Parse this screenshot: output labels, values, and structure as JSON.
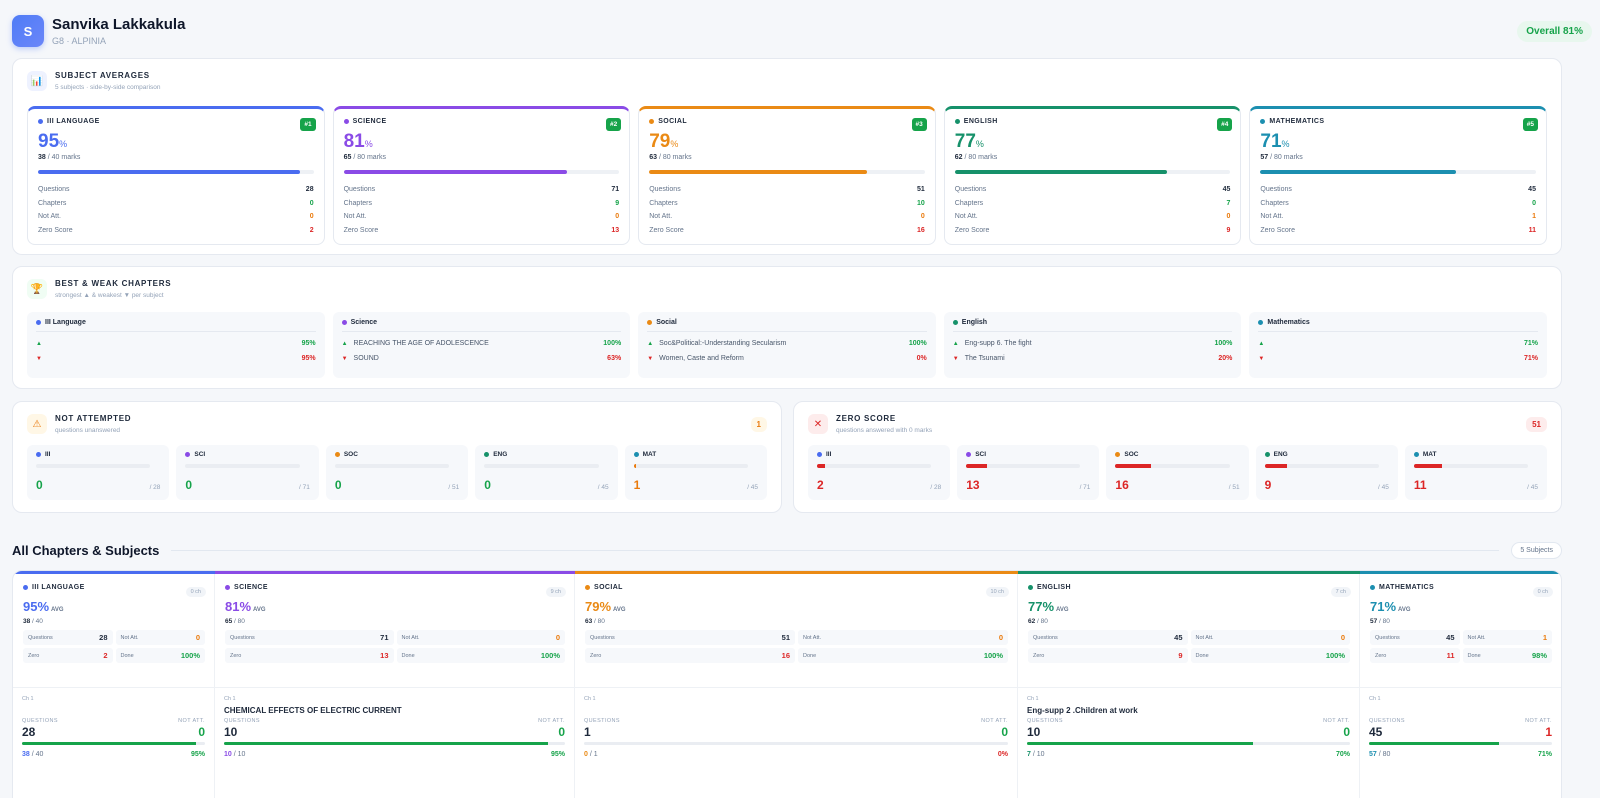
{
  "student": {
    "initial": "S",
    "name": "Sanvika Lakkakula",
    "class": "G8 · ALPINIA",
    "overall": "Overall 81%"
  },
  "colors": {
    "language": "#4a6cf0",
    "science": "#8a4be6",
    "social": "#ea8a15",
    "english": "#16916a",
    "mathematics": "#1c8fb0"
  },
  "averages": {
    "title": "SUBJECT AVERAGES",
    "subtitle": "5 subjects · side-by-side comparison",
    "labels": {
      "questions": "Questions",
      "chapters": "Chapters",
      "not_att": "Not Att.",
      "zero": "Zero Score"
    },
    "cards": [
      {
        "name": "III LANGUAGE",
        "rank": "#1",
        "pct": "95",
        "scored": "38",
        "total": "/ 40 marks",
        "progress": 95,
        "questions": "28",
        "chapters": "0",
        "not_att": "0",
        "zero": "2"
      },
      {
        "name": "SCIENCE",
        "rank": "#2",
        "pct": "81",
        "scored": "65",
        "total": "/ 80 marks",
        "progress": 81,
        "questions": "71",
        "chapters": "9",
        "not_att": "0",
        "zero": "13"
      },
      {
        "name": "SOCIAL",
        "rank": "#3",
        "pct": "79",
        "scored": "63",
        "total": "/ 80 marks",
        "progress": 79,
        "questions": "51",
        "chapters": "10",
        "not_att": "0",
        "zero": "16"
      },
      {
        "name": "ENGLISH",
        "rank": "#4",
        "pct": "77",
        "scored": "62",
        "total": "/ 80 marks",
        "progress": 77,
        "questions": "45",
        "chapters": "7",
        "not_att": "0",
        "zero": "9"
      },
      {
        "name": "MATHEMATICS",
        "rank": "#5",
        "pct": "71",
        "scored": "57",
        "total": "/ 80 marks",
        "progress": 71,
        "questions": "45",
        "chapters": "0",
        "not_att": "1",
        "zero": "11"
      }
    ]
  },
  "best_weak": {
    "title": "BEST & WEAK CHAPTERS",
    "subtitle": "strongest ▲ & weakest ▼ per subject",
    "cards": [
      {
        "name": "III Language",
        "best": "",
        "best_pct": "95%",
        "weak": "",
        "weak_pct": "95%"
      },
      {
        "name": "Science",
        "best": "REACHING THE AGE OF ADOLESCENCE",
        "best_pct": "100%",
        "weak": "SOUND",
        "weak_pct": "63%"
      },
      {
        "name": "Social",
        "best": "Soc&Political:-Understanding Secularism",
        "best_pct": "100%",
        "weak": "Women, Caste and Reform",
        "weak_pct": "0%"
      },
      {
        "name": "English",
        "best": "Eng-supp 6. The fight",
        "best_pct": "100%",
        "weak": "The Tsunami",
        "weak_pct": "20%"
      },
      {
        "name": "Mathematics",
        "best": "",
        "best_pct": "71%",
        "weak": "",
        "weak_pct": "71%"
      }
    ]
  },
  "not_attempted": {
    "title": "NOT ATTEMPTED",
    "subtitle": "questions unanswered",
    "count": "1",
    "items": [
      {
        "name": "III",
        "value": "0",
        "of": "/ 28",
        "fraction": 0
      },
      {
        "name": "SCI",
        "value": "0",
        "of": "/ 71",
        "fraction": 0
      },
      {
        "name": "SOC",
        "value": "0",
        "of": "/ 51",
        "fraction": 0
      },
      {
        "name": "ENG",
        "value": "0",
        "of": "/ 45",
        "fraction": 0
      },
      {
        "name": "MAT",
        "value": "1",
        "of": "/ 45",
        "fraction": 0.022
      }
    ]
  },
  "zero_score": {
    "title": "ZERO SCORE",
    "subtitle": "questions answered with 0 marks",
    "count": "51",
    "items": [
      {
        "name": "III",
        "value": "2",
        "of": "/ 28",
        "fraction": 0.071
      },
      {
        "name": "SCI",
        "value": "13",
        "of": "/ 71",
        "fraction": 0.183
      },
      {
        "name": "SOC",
        "value": "16",
        "of": "/ 51",
        "fraction": 0.314
      },
      {
        "name": "ENG",
        "value": "9",
        "of": "/ 45",
        "fraction": 0.2
      },
      {
        "name": "MAT",
        "value": "11",
        "of": "/ 45",
        "fraction": 0.244
      }
    ]
  },
  "all": {
    "title": "All Chapters & Subjects",
    "badge": "5 Subjects",
    "avg_label": "AVG",
    "labels": {
      "questions": "Questions",
      "not_att": "Not Att.",
      "zero": "Zero",
      "done": "Done",
      "q_upper": "QUESTIONS",
      "na_upper": "NOT ATT."
    },
    "subjects": [
      {
        "name": "III LANGUAGE",
        "ch": "0 ch",
        "pct": "95%",
        "scored": "38",
        "total": "/ 40",
        "questions": "28",
        "not_att": "0",
        "zero": "2",
        "done": "100%",
        "chapter": {
          "no": "Ch 1",
          "title": "",
          "questions": "28",
          "not_att": "0",
          "scored": "38",
          "total": "/ 40",
          "pct": "95%",
          "fill": 0.95
        }
      },
      {
        "name": "SCIENCE",
        "ch": "9 ch",
        "pct": "81%",
        "scored": "65",
        "total": "/ 80",
        "questions": "71",
        "not_att": "0",
        "zero": "13",
        "done": "100%",
        "chapter": {
          "no": "Ch 1",
          "title": "CHEMICAL EFFECTS OF ELECTRIC CURRENT",
          "questions": "10",
          "not_att": "0",
          "scored": "10",
          "total": "/ 10",
          "pct": "95%",
          "fill": 0.95
        }
      },
      {
        "name": "SOCIAL",
        "ch": "10 ch",
        "pct": "79%",
        "scored": "63",
        "total": "/ 80",
        "questions": "51",
        "not_att": "0",
        "zero": "16",
        "done": "100%",
        "chapter": {
          "no": "Ch 1",
          "title": "",
          "questions": "1",
          "not_att": "0",
          "scored": "0",
          "total": "/ 1",
          "pct": "0%",
          "fill": 0
        }
      },
      {
        "name": "ENGLISH",
        "ch": "7 ch",
        "pct": "77%",
        "scored": "62",
        "total": "/ 80",
        "questions": "45",
        "not_att": "0",
        "zero": "9",
        "done": "100%",
        "chapter": {
          "no": "Ch 1",
          "title": "Eng-supp 2 .Children at work",
          "questions": "10",
          "not_att": "0",
          "scored": "7",
          "total": "/ 10",
          "pct": "70%",
          "fill": 0.7
        }
      },
      {
        "name": "MATHEMATICS",
        "ch": "0 ch",
        "pct": "71%",
        "scored": "57",
        "total": "/ 80",
        "questions": "45",
        "not_att": "1",
        "zero": "11",
        "done": "98%",
        "chapter": {
          "no": "Ch 1",
          "title": "",
          "questions": "45",
          "not_att": "1",
          "scored": "57",
          "total": "/ 80",
          "pct": "71%",
          "fill": 0.71
        }
      }
    ]
  }
}
